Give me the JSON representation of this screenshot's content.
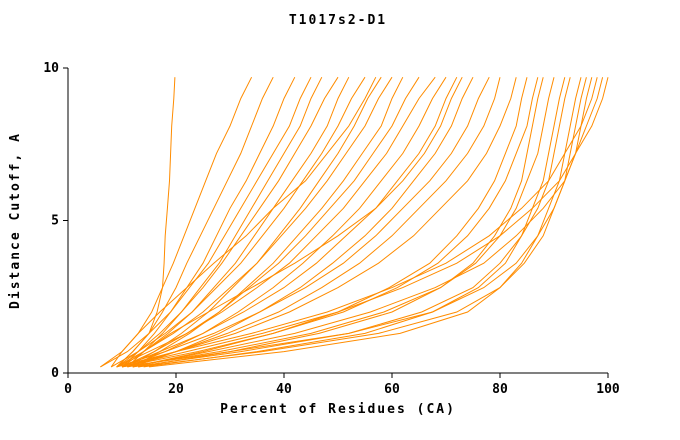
{
  "chart_data": {
    "type": "line",
    "title": "T1017s2-D1",
    "xlabel": "Percent of Residues (CA)",
    "ylabel": "Distance Cutoff, A",
    "xlim": [
      0,
      100
    ],
    "ylim": [
      0,
      10
    ],
    "x_ticks": [
      0,
      20,
      40,
      60,
      80,
      100
    ],
    "y_ticks": [
      0,
      5,
      10
    ],
    "grid": false,
    "legend": "none",
    "line_color": "#ff8c00",
    "series_y_levels": [
      0.2,
      0.7,
      1.3,
      2.0,
      2.8,
      3.6,
      4.5,
      5.4,
      6.3,
      7.2,
      8.1,
      9.0,
      9.7
    ],
    "series_x": [
      [
        9,
        12,
        15,
        16.5,
        17.5,
        17.8,
        18,
        18.4,
        18.8,
        19,
        19.2,
        19.6,
        19.8
      ],
      [
        6,
        10,
        13,
        15.5,
        17.5,
        19.5,
        21.5,
        23.5,
        25.5,
        27.5,
        30,
        32,
        34
      ],
      [
        9,
        12,
        15,
        17.5,
        20,
        22,
        24.5,
        27,
        29.5,
        32,
        34,
        36,
        38
      ],
      [
        10,
        13,
        16,
        19,
        22,
        25,
        27.5,
        30,
        33,
        35.5,
        38,
        40,
        42
      ],
      [
        6,
        11,
        15,
        19,
        22.5,
        26,
        29,
        32,
        35,
        38,
        41,
        43,
        45
      ],
      [
        11,
        14,
        17.5,
        21,
        24.5,
        28,
        31,
        34,
        37,
        40,
        43,
        45,
        47
      ],
      [
        9,
        13,
        17,
        21,
        25,
        28.5,
        32,
        35.5,
        39,
        42,
        45,
        47.5,
        50
      ],
      [
        10,
        14,
        18.5,
        23,
        27,
        31,
        34.5,
        38,
        41.5,
        45,
        48,
        50,
        52
      ],
      [
        8,
        13,
        18,
        23,
        27.5,
        32,
        36,
        40,
        43.5,
        47,
        50,
        52.5,
        55
      ],
      [
        11,
        16,
        21,
        26,
        30.5,
        35,
        39,
        43,
        46.5,
        50,
        53,
        55.5,
        58
      ],
      [
        9,
        14,
        19.5,
        25,
        30,
        35,
        39.5,
        44,
        48,
        51.5,
        55,
        57.5,
        60
      ],
      [
        12,
        17,
        22.5,
        28,
        33,
        38,
        42.5,
        47,
        51,
        54.5,
        58,
        60,
        62
      ],
      [
        10,
        16,
        22,
        28,
        33.5,
        39,
        44,
        48.5,
        53,
        56.5,
        60,
        62.5,
        65
      ],
      [
        9,
        15,
        22,
        28.5,
        35,
        41,
        46,
        51,
        55,
        59,
        62,
        65,
        68
      ],
      [
        11,
        18,
        25,
        31.5,
        38,
        43.5,
        49,
        54,
        58,
        62,
        65,
        67.5,
        70
      ],
      [
        10,
        17,
        25,
        32.5,
        40,
        46,
        51.5,
        57,
        61,
        65,
        68,
        70,
        72
      ],
      [
        12,
        20,
        28,
        35.5,
        43,
        49,
        55,
        60,
        64,
        68,
        71,
        73,
        75
      ],
      [
        9,
        18,
        27,
        35.5,
        44,
        51,
        57,
        62,
        67,
        71,
        74,
        76,
        78
      ],
      [
        11,
        20,
        29.5,
        39,
        47,
        54,
        60,
        65,
        70,
        74,
        77,
        79,
        80
      ],
      [
        10,
        20,
        31,
        41,
        50,
        57.5,
        64,
        69,
        74,
        77.5,
        80,
        82,
        83
      ],
      [
        12,
        25,
        38,
        50,
        59.5,
        67,
        72,
        76,
        79,
        81,
        83,
        84,
        85
      ],
      [
        10,
        24,
        38,
        51,
        61,
        68.5,
        74,
        78,
        81,
        83,
        85,
        86,
        87
      ],
      [
        13,
        30,
        46.5,
        60,
        69,
        75,
        79,
        82,
        84,
        85,
        86,
        87,
        88
      ],
      [
        11,
        28,
        45,
        58.5,
        69,
        75.5,
        80,
        83,
        85,
        87,
        88,
        89,
        90
      ],
      [
        14,
        35,
        55,
        67.5,
        76,
        81,
        84,
        86,
        88,
        89,
        90,
        91,
        92
      ],
      [
        12,
        32,
        52,
        65.5,
        75,
        80,
        84,
        87,
        89,
        90,
        91,
        92,
        93
      ],
      [
        15,
        40,
        61.5,
        74,
        80,
        84,
        87,
        89,
        91,
        92,
        93,
        94,
        95
      ],
      [
        13,
        36,
        57.5,
        72,
        80,
        84.5,
        88,
        90,
        92,
        93,
        94,
        95,
        96
      ],
      [
        10,
        30,
        52,
        67.5,
        77,
        83,
        87,
        90,
        92,
        94,
        95,
        96,
        97
      ],
      [
        9,
        20,
        34,
        48,
        60,
        70,
        78,
        84,
        89,
        92,
        95,
        97,
        98
      ],
      [
        12,
        26,
        42,
        56,
        68,
        77,
        83,
        88,
        92,
        94,
        96,
        98,
        99
      ],
      [
        10,
        22,
        36,
        50,
        62,
        72,
        80,
        86,
        91,
        94,
        97,
        99,
        100
      ],
      [
        8,
        10,
        13,
        17,
        22,
        27,
        33,
        38,
        44,
        48,
        52,
        55,
        57
      ],
      [
        11,
        14,
        19,
        26,
        34,
        42,
        50,
        57,
        62,
        66,
        69,
        71,
        73
      ]
    ]
  }
}
